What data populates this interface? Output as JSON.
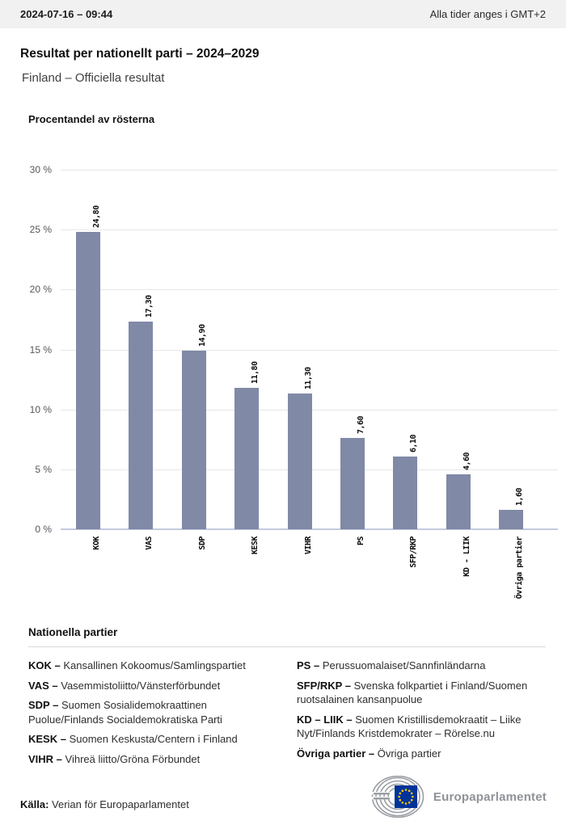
{
  "header": {
    "datetime": "2024-07-16 – 09:44",
    "timezone_note": "Alla tider anges i GMT+2"
  },
  "title": "Resultat per nationellt parti – 2024–2029",
  "subtitle": "Finland – Officiella resultat",
  "chart_data": {
    "type": "bar",
    "title": "Procentandel av rösterna",
    "categories": [
      "KOK",
      "VAS",
      "SDP",
      "KESK",
      "VIHR",
      "PS",
      "SFP/RKP",
      "KD - LIIK",
      "Övriga partier"
    ],
    "values": [
      24.8,
      17.3,
      14.9,
      11.8,
      11.3,
      7.6,
      6.1,
      4.6,
      1.6
    ],
    "value_labels": [
      "24,80",
      "17,30",
      "14,90",
      "11,80",
      "11,30",
      "7,60",
      "6,10",
      "4,60",
      "1,60"
    ],
    "yticks": [
      30,
      25,
      20,
      15,
      10,
      5,
      0
    ],
    "ytick_labels": [
      "30 %",
      "25 %",
      "20 %",
      "15 %",
      "10 %",
      "5 %",
      "0 %"
    ],
    "ylim": [
      0,
      30
    ],
    "xlabel": "",
    "ylabel": "",
    "grid": "horizontal",
    "legend_position": "none",
    "bar_color": "#8089A6",
    "gridline_color": "#E7E7E7",
    "axis_line_color": "#C3CADE"
  },
  "legend": {
    "heading": "Nationella partier",
    "left": [
      {
        "abbr": "KOK –",
        "desc": "Kansallinen Kokoomus/Samlingspartiet"
      },
      {
        "abbr": "VAS –",
        "desc": "Vasemmistoliitto/Vänsterförbundet"
      },
      {
        "abbr": "SDP –",
        "desc": "Suomen Sosialidemokraattinen Puolue/Finlands Socialdemokratiska Parti"
      },
      {
        "abbr": "KESK –",
        "desc": "Suomen Keskusta/Centern i Finland"
      },
      {
        "abbr": "VIHR –",
        "desc": "Vihreä liitto/Gröna Förbundet"
      }
    ],
    "right": [
      {
        "abbr": "PS –",
        "desc": "Perussuomalaiset/Sannfinländarna"
      },
      {
        "abbr": "SFP/RKP –",
        "desc": "Svenska folkpartiet i Finland/Suomen ruotsalainen kansanpuolue"
      },
      {
        "abbr": "KD – LIIK –",
        "desc": "Suomen Kristillisdemokraatit – Liike Nyt/Finlands Kristdemokrater – Rörelse.nu"
      },
      {
        "abbr": "Övriga partier –",
        "desc": "Övriga partier"
      }
    ]
  },
  "footer": {
    "source_label": "Källa:",
    "source_text": " Verian för Europaparlamentet",
    "logo_text": "Europaparlamentet",
    "eu_blue": "#003399",
    "star_yellow": "#FFCC00",
    "logo_gray": "#9A9EA3"
  }
}
